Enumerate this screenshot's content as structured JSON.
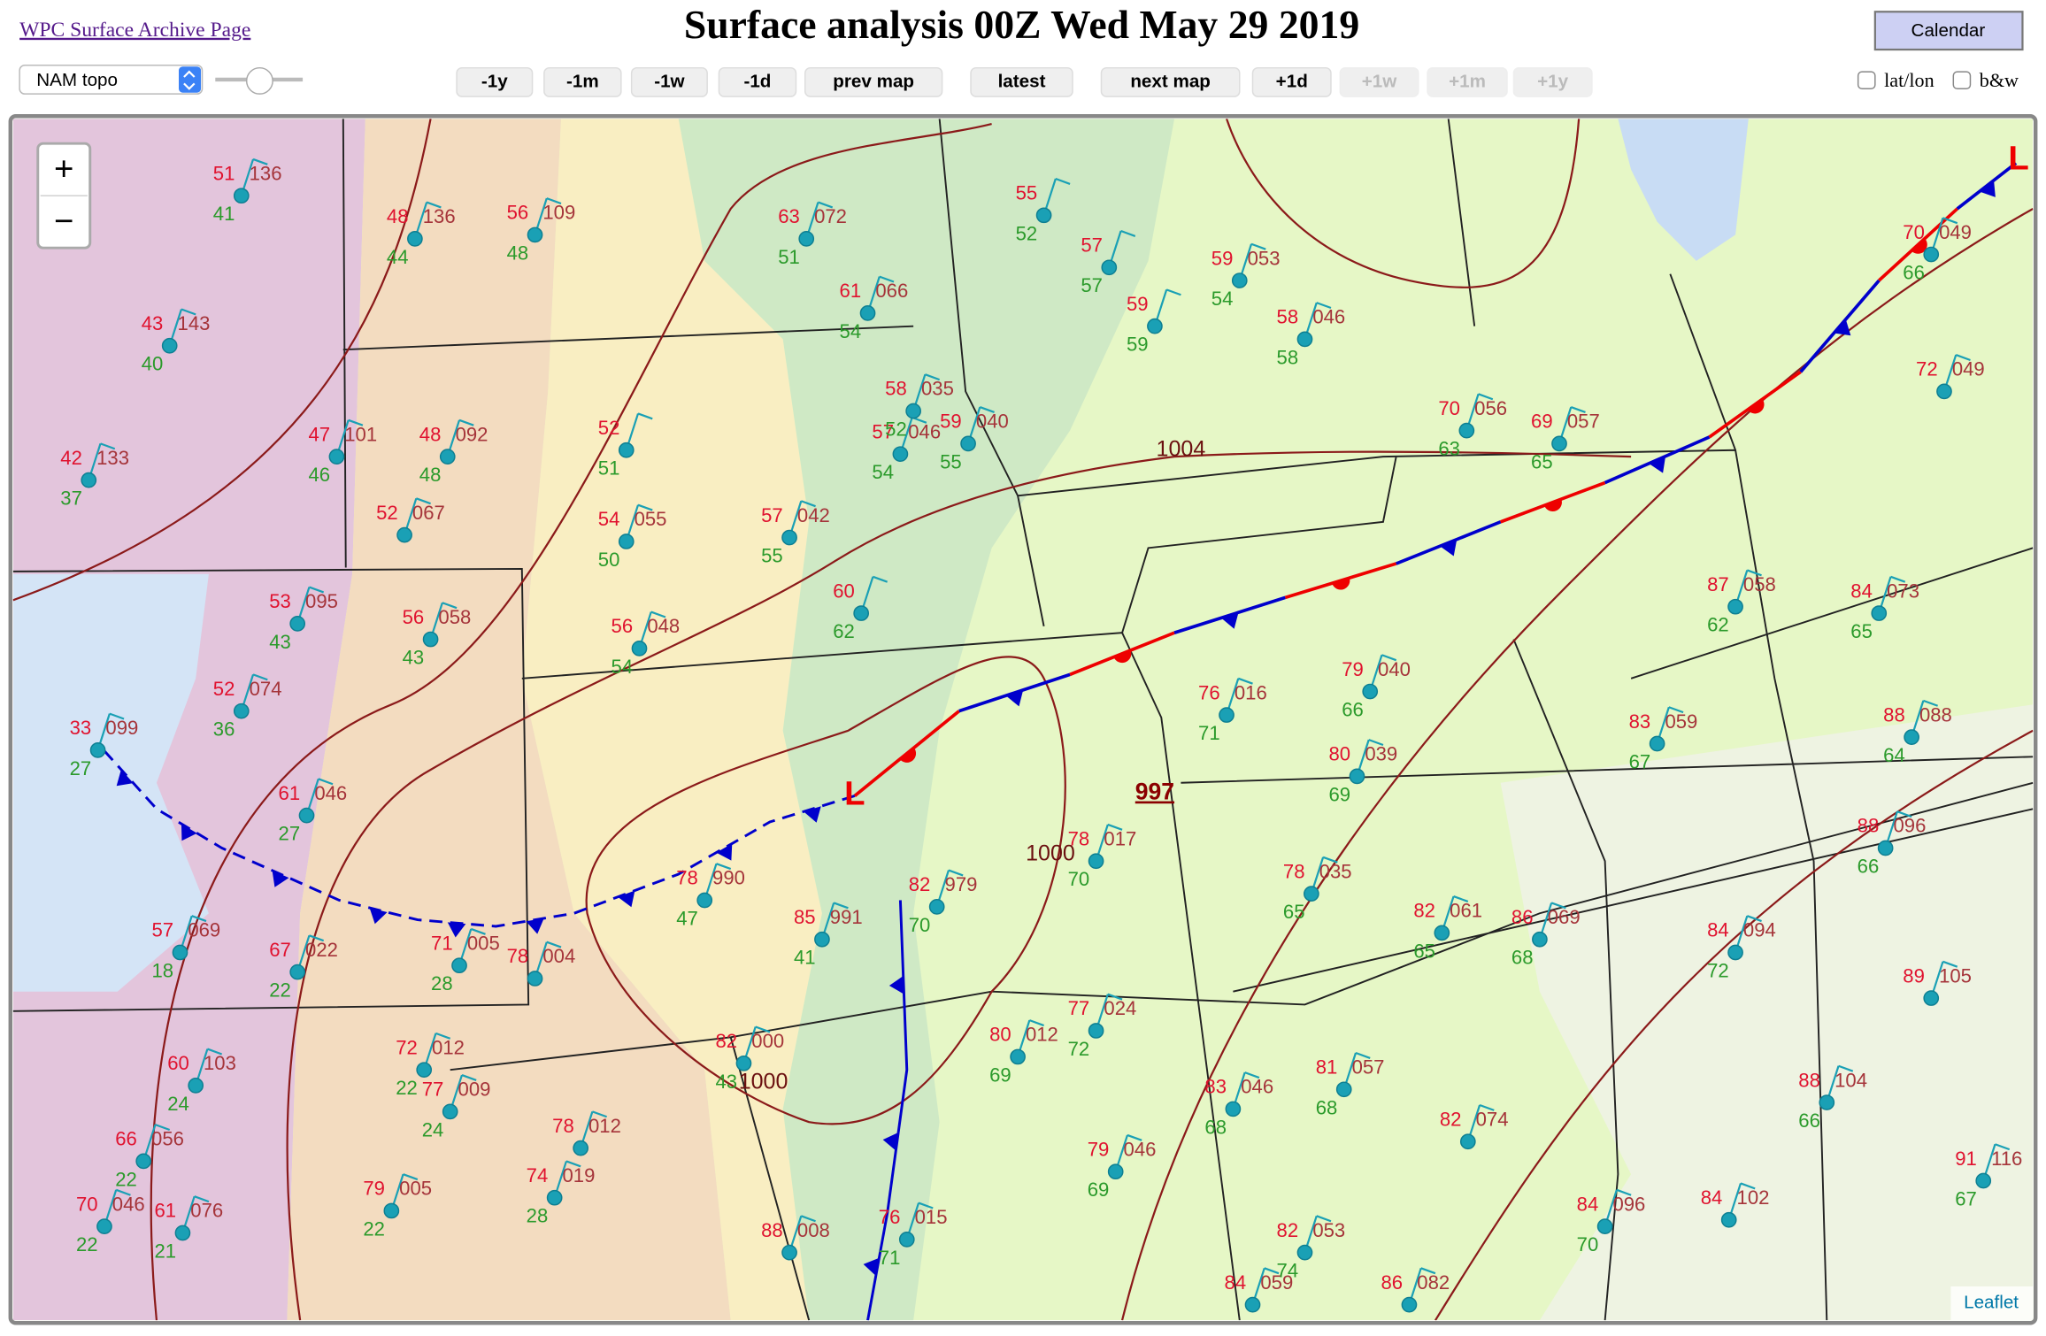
{
  "header": {
    "archive_link": "WPC Surface Archive Page",
    "title": "Surface analysis 00Z Wed May 29 2019",
    "calendar_button": "Calendar"
  },
  "controls": {
    "layer_select": "NAM topo",
    "nav_buttons": [
      {
        "label": "-1y",
        "enabled": true
      },
      {
        "label": "-1m",
        "enabled": true
      },
      {
        "label": "-1w",
        "enabled": true
      },
      {
        "label": "-1d",
        "enabled": true
      },
      {
        "label": "prev map",
        "enabled": true
      },
      {
        "label": "latest",
        "enabled": true
      },
      {
        "label": "next map",
        "enabled": true
      },
      {
        "label": "+1d",
        "enabled": true
      },
      {
        "label": "+1w",
        "enabled": false
      },
      {
        "label": "+1m",
        "enabled": false
      },
      {
        "label": "+1y",
        "enabled": false
      }
    ],
    "checkboxes": [
      {
        "label": "lat/lon",
        "checked": false
      },
      {
        "label": "b&w",
        "checked": false
      }
    ]
  },
  "map": {
    "zoom_in": "+",
    "zoom_out": "−",
    "attribution": "Leaflet",
    "low_symbol": "L",
    "pressure_labels": [
      "1000",
      "1004",
      "1000",
      "997"
    ],
    "stations": [
      [
        "51",
        "41",
        "136"
      ],
      [
        "48",
        "44",
        "136"
      ],
      [
        "56",
        "48",
        "109"
      ],
      [
        "43",
        "40",
        "143"
      ],
      [
        "42",
        "37",
        "133"
      ],
      [
        "47",
        "46",
        "101"
      ],
      [
        "48",
        "48",
        "092"
      ],
      [
        "52",
        "51",
        null
      ],
      [
        "52",
        null,
        "067"
      ],
      [
        "53",
        "43",
        "095"
      ],
      [
        "56",
        "43",
        "058"
      ],
      [
        "54",
        "50",
        "055"
      ],
      [
        "56",
        "54",
        "048"
      ],
      [
        "57",
        "55",
        "042"
      ],
      [
        "60",
        "62",
        null
      ],
      [
        "57",
        "54",
        "046"
      ],
      [
        "59",
        "55",
        "040"
      ],
      [
        "63",
        "51",
        "072"
      ],
      [
        "61",
        "54",
        "066"
      ],
      [
        "58",
        "52",
        "035"
      ],
      [
        "55",
        "52",
        null
      ],
      [
        "57",
        "57",
        null
      ],
      [
        "59",
        "59",
        null
      ],
      [
        "59",
        "54",
        "053"
      ],
      [
        "58",
        "58",
        "046"
      ],
      [
        "70",
        "63",
        "056"
      ],
      [
        "69",
        "65",
        "057"
      ],
      [
        "79",
        "66",
        "040"
      ],
      [
        "80",
        "69",
        "039"
      ],
      [
        "78",
        "65",
        "035"
      ],
      [
        "82",
        "65",
        "061"
      ],
      [
        "86",
        "68",
        "069"
      ],
      [
        "83",
        "67",
        "059"
      ],
      [
        "88",
        "64",
        "088"
      ],
      [
        "88",
        "66",
        "096"
      ],
      [
        "88",
        "66",
        "104"
      ],
      [
        "81",
        "68",
        "057"
      ],
      [
        "82",
        null,
        "074"
      ],
      [
        "84",
        null,
        "059"
      ],
      [
        "86",
        null,
        "082"
      ],
      [
        "76",
        "71",
        "016"
      ],
      [
        "78",
        "70",
        "017"
      ],
      [
        "82",
        "70",
        "979"
      ],
      [
        "85",
        "41",
        "991"
      ],
      [
        "78",
        "47",
        "990"
      ],
      [
        "78",
        null,
        "004"
      ],
      [
        "71",
        "28",
        "005"
      ],
      [
        "67",
        "22",
        "022"
      ],
      [
        "57",
        "18",
        "069"
      ],
      [
        "33",
        "27",
        "099"
      ],
      [
        "61",
        "27",
        "046"
      ],
      [
        "52",
        "36",
        "074"
      ],
      [
        "60",
        "24",
        "103"
      ],
      [
        "66",
        "22",
        "056"
      ],
      [
        "70",
        "22",
        "046"
      ],
      [
        "61",
        "21",
        "076"
      ],
      [
        "79",
        "22",
        "005"
      ],
      [
        "74",
        "28",
        "019"
      ],
      [
        "72",
        "22",
        "012"
      ],
      [
        "77",
        "24",
        "009"
      ],
      [
        "78",
        null,
        "012"
      ],
      [
        "82",
        "43",
        "000"
      ],
      [
        "88",
        null,
        "008"
      ],
      [
        "76",
        "71",
        "015"
      ],
      [
        "80",
        "69",
        "012"
      ],
      [
        "77",
        "72",
        "024"
      ],
      [
        "83",
        "68",
        "046"
      ],
      [
        "79",
        "69",
        "046"
      ],
      [
        "82",
        "74",
        "053"
      ],
      [
        "84",
        "70",
        "096"
      ],
      [
        "84",
        null,
        "102"
      ],
      [
        "91",
        "67",
        "116"
      ],
      [
        "89",
        null,
        "105"
      ],
      [
        "84",
        "72",
        "094"
      ],
      [
        "70",
        "66",
        "049"
      ],
      [
        "72",
        null,
        "049"
      ],
      [
        "87",
        "62",
        "058"
      ],
      [
        "84",
        "65",
        "073"
      ]
    ]
  }
}
